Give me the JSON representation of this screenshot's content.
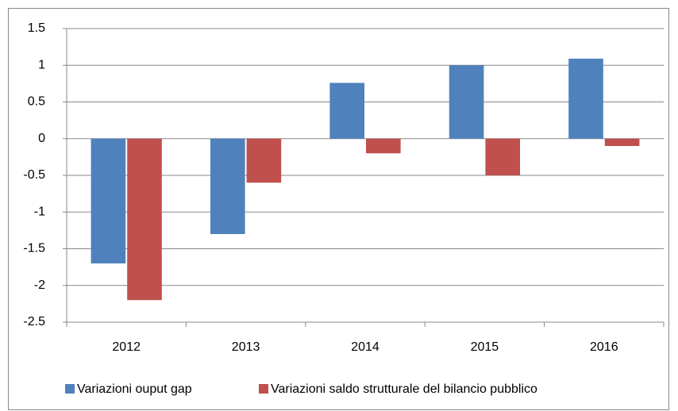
{
  "chart_data": {
    "type": "bar",
    "categories": [
      "2012",
      "2013",
      "2014",
      "2015",
      "2016"
    ],
    "series": [
      {
        "name": "Variazioni ouput gap",
        "color": "#4f81bd",
        "values": [
          -1.7,
          -1.3,
          0.76,
          1.0,
          1.09
        ]
      },
      {
        "name": "Variazioni saldo strutturale del bilancio pubblico",
        "color": "#c0504d",
        "values": [
          -2.2,
          -0.6,
          -0.2,
          -0.5,
          -0.1
        ]
      }
    ],
    "ylim": [
      -2.5,
      1.5
    ],
    "yticks": [
      1.5,
      1,
      0.5,
      0,
      -0.5,
      -1,
      -1.5,
      -2,
      -2.5
    ],
    "grid": true,
    "legend": "bottom"
  }
}
